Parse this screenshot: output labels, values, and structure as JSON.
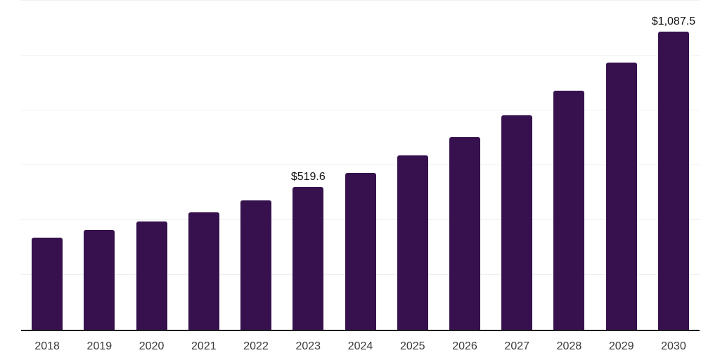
{
  "chart_data": {
    "type": "bar",
    "title": "",
    "xlabel": "",
    "ylabel": "",
    "categories": [
      "2018",
      "2019",
      "2020",
      "2021",
      "2022",
      "2023",
      "2024",
      "2025",
      "2026",
      "2027",
      "2028",
      "2029",
      "2030"
    ],
    "values": [
      336,
      364,
      395,
      428,
      472,
      519.6,
      572,
      636,
      703,
      782,
      872,
      974,
      1087.5
    ],
    "data_labels": [
      "",
      "",
      "",
      "",
      "",
      "$519.6",
      "",
      "",
      "",
      "",
      "",
      "",
      "$1,087.5"
    ],
    "ylim": [
      0,
      1200
    ],
    "gridline_step": 200,
    "grid": true,
    "legend": false,
    "legend_position": "none",
    "colors": {
      "bar": "#36114e",
      "axis_line": "#1f1f1f",
      "gridline": "#f0f0f1",
      "tick_label": "#3a3a3a",
      "data_label": "#101010",
      "background": "#ffffff"
    }
  }
}
